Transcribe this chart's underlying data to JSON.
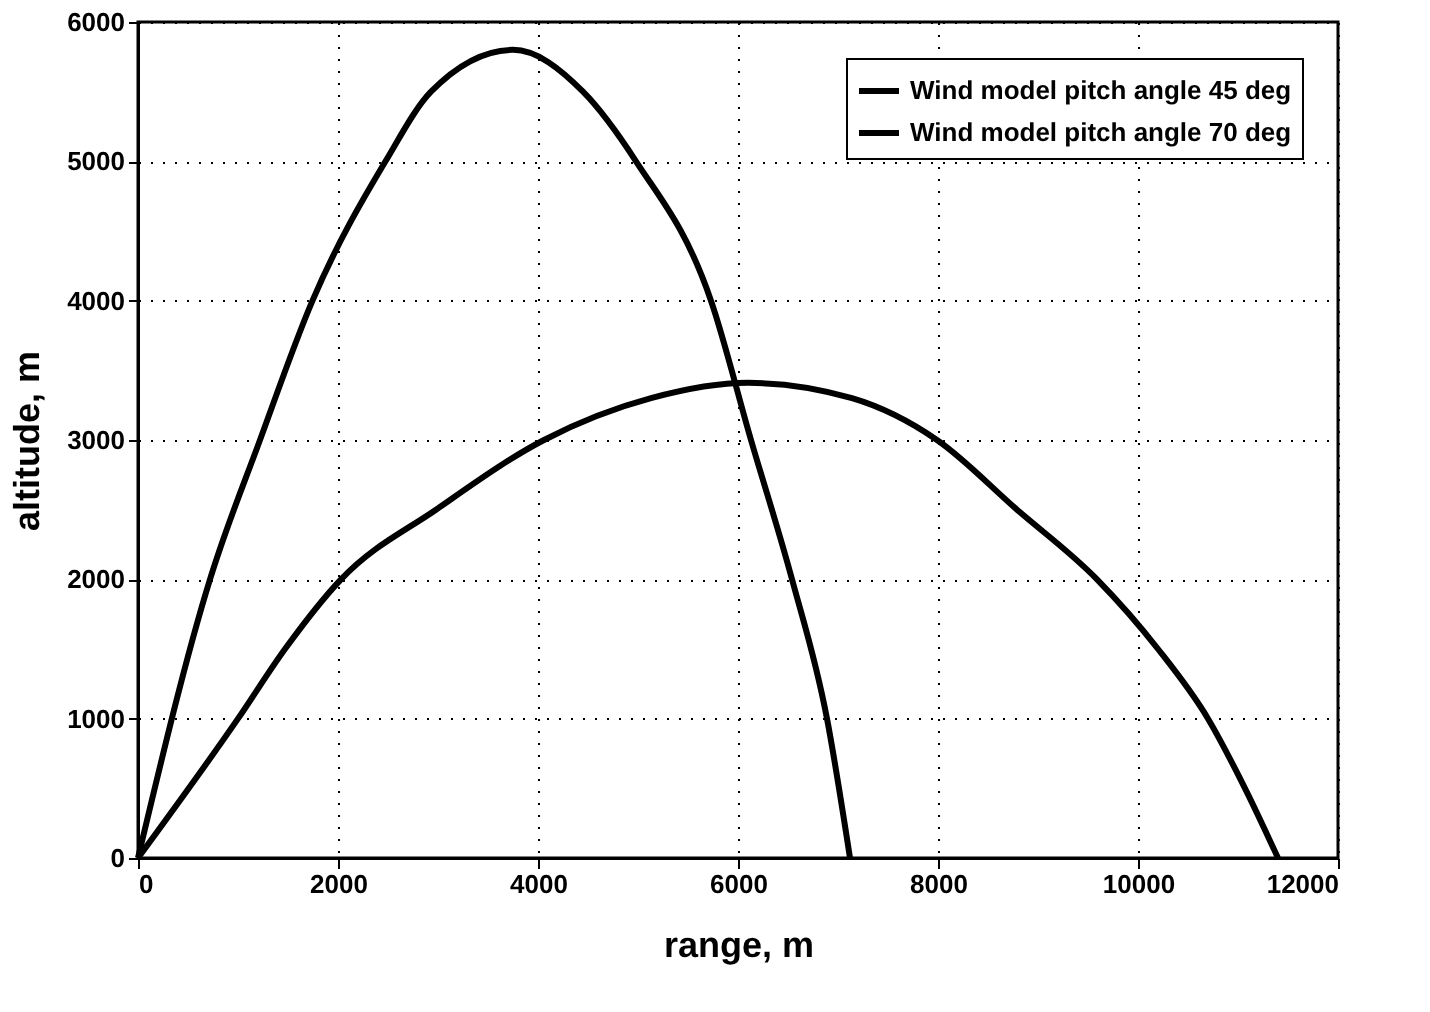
{
  "chart_data": {
    "type": "line",
    "xlabel": "range, m",
    "ylabel": "altitude, m",
    "xlim": [
      0,
      12000
    ],
    "ylim": [
      0,
      6000
    ],
    "xticks": [
      0,
      2000,
      4000,
      6000,
      8000,
      10000,
      12000
    ],
    "yticks": [
      0,
      1000,
      2000,
      3000,
      4000,
      5000,
      6000
    ],
    "grid": true,
    "legend": "top right",
    "marker": "none",
    "line_style": "solid",
    "series": [
      {
        "name": "Wind model pitch angle 45 deg",
        "color": "#000000",
        "x": [
          0,
          1000,
          1470,
          2030,
          2980,
          4060,
          5130,
          6100,
          7140,
          7990,
          8790,
          9590,
          10200,
          10700,
          11070,
          11400
        ],
        "values": [
          0,
          1000,
          1500,
          2000,
          2500,
          3000,
          3300,
          3410,
          3300,
          3000,
          2500,
          2000,
          1500,
          1000,
          500,
          0
        ]
      },
      {
        "name": "Wind model pitch angle 70 deg",
        "color": "#000000",
        "x": [
          0,
          720,
          1220,
          1745,
          2475,
          2930,
          3750,
          4450,
          4980,
          5730,
          6130,
          6540,
          6890,
          7120
        ],
        "values": [
          0,
          2000,
          3000,
          4000,
          5000,
          5500,
          5800,
          5500,
          5000,
          4000,
          3000,
          2000,
          1000,
          0
        ]
      }
    ]
  }
}
